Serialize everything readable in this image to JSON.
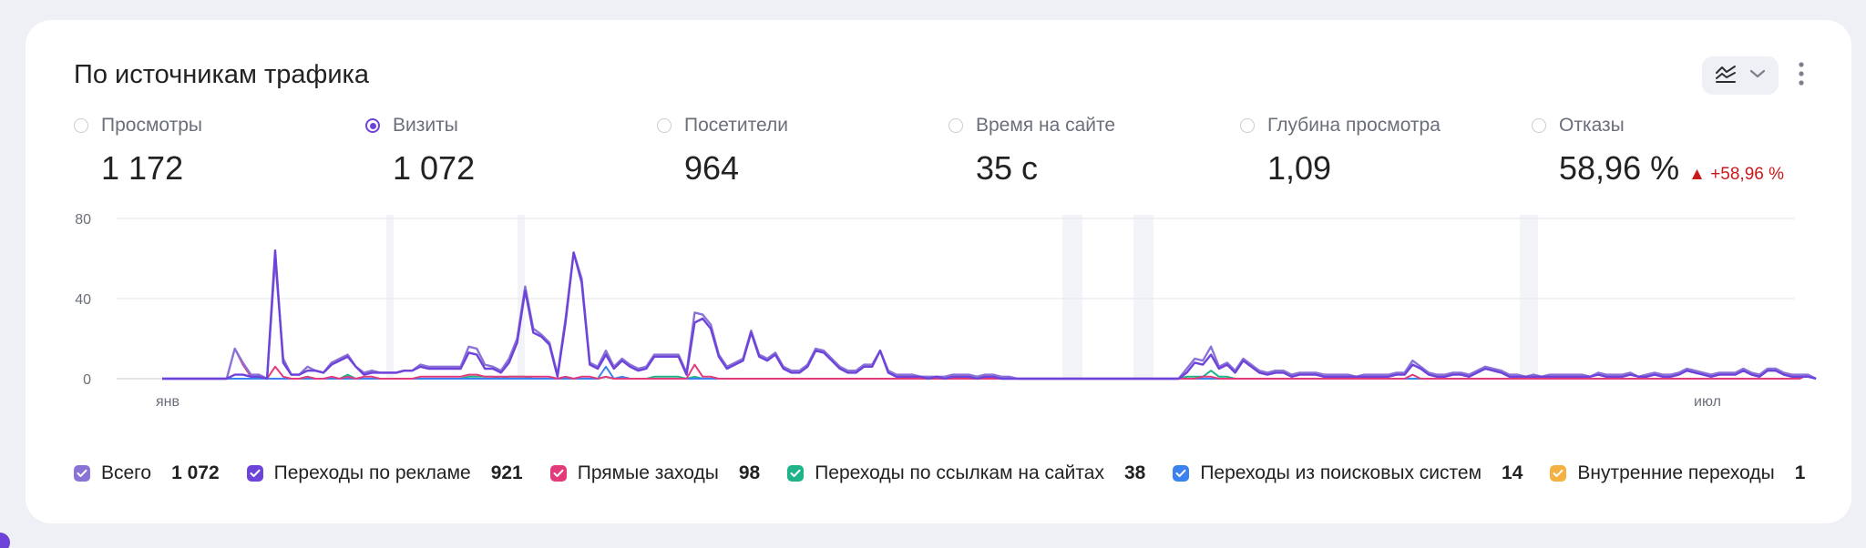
{
  "title": "По источникам трафика",
  "metrics": [
    {
      "label": "Просмотры",
      "value": "1 172",
      "selected": false
    },
    {
      "label": "Визиты",
      "value": "1 072",
      "selected": true
    },
    {
      "label": "Посетители",
      "value": "964",
      "selected": false
    },
    {
      "label": "Время на сайте",
      "value": "35 с",
      "selected": false
    },
    {
      "label": "Глубина просмотра",
      "value": "1,09",
      "selected": false
    },
    {
      "label": "Отказы",
      "value": "58,96 %",
      "delta": "▲ +58,96 %",
      "selected": false
    }
  ],
  "icons": {
    "chart_type": "line-chart-icon",
    "dropdown": "chevron-down-icon",
    "more": "more-vertical-icon"
  },
  "chart_data": {
    "type": "line",
    "x_tick_labels": [
      "янв",
      "июл"
    ],
    "y_ticks": [
      0,
      40,
      80
    ],
    "ylim": [
      0,
      80
    ],
    "n_points": 200,
    "series": [
      {
        "name": "Всего",
        "color": "#8a73d6",
        "values": [
          0,
          0,
          0,
          0,
          0,
          0,
          0,
          0,
          0,
          15,
          8,
          2,
          2,
          0,
          60,
          10,
          2,
          2,
          6,
          4,
          3,
          8,
          10,
          12,
          6,
          3,
          4,
          3,
          3,
          3,
          4,
          4,
          7,
          6,
          6,
          6,
          6,
          6,
          16,
          15,
          7,
          6,
          4,
          10,
          20,
          46,
          25,
          22,
          18,
          2,
          30,
          63,
          50,
          8,
          6,
          14,
          6,
          10,
          7,
          5,
          6,
          12,
          12,
          12,
          12,
          3,
          33,
          32,
          27,
          12,
          6,
          8,
          10,
          24,
          12,
          10,
          13,
          6,
          4,
          4,
          7,
          15,
          14,
          10,
          6,
          4,
          4,
          7,
          7,
          14,
          4,
          2,
          2,
          2,
          1,
          1,
          1,
          1,
          2,
          2,
          2,
          1,
          2,
          2,
          1,
          1,
          0,
          0,
          0,
          0,
          0,
          0,
          0,
          0,
          0,
          0,
          0,
          0,
          0,
          0,
          0,
          0,
          0,
          0,
          0,
          0,
          0,
          5,
          10,
          9,
          16,
          6,
          8,
          4,
          10,
          7,
          4,
          3,
          4,
          4,
          2,
          3,
          3,
          3,
          2,
          2,
          2,
          2,
          1,
          2,
          2,
          2,
          2,
          3,
          3,
          9,
          6,
          3,
          2,
          2,
          3,
          3,
          2,
          4,
          6,
          5,
          4,
          2,
          2,
          1,
          2,
          1,
          2,
          2,
          2,
          2,
          2,
          1,
          3,
          2,
          2,
          2,
          3,
          1,
          2,
          3,
          2,
          2,
          3,
          5,
          4,
          3,
          2,
          3,
          3,
          3,
          5,
          3,
          2,
          5,
          5,
          3,
          2,
          2,
          2,
          0
        ]
      },
      {
        "name": "Переходы по рекламе",
        "color": "#6e43d9",
        "values": [
          0,
          0,
          0,
          0,
          0,
          0,
          0,
          0,
          0,
          2,
          2,
          1,
          1,
          0,
          64,
          8,
          2,
          2,
          4,
          4,
          3,
          7,
          9,
          11,
          6,
          2,
          3,
          3,
          3,
          3,
          4,
          4,
          6,
          5,
          5,
          5,
          5,
          5,
          13,
          12,
          5,
          5,
          3,
          8,
          18,
          44,
          23,
          21,
          17,
          1,
          28,
          63,
          48,
          7,
          5,
          12,
          5,
          9,
          6,
          4,
          5,
          11,
          11,
          11,
          11,
          2,
          28,
          30,
          25,
          11,
          5,
          7,
          9,
          23,
          11,
          9,
          12,
          5,
          3,
          3,
          6,
          14,
          13,
          9,
          5,
          3,
          3,
          6,
          6,
          14,
          3,
          1,
          1,
          1,
          1,
          0,
          1,
          0,
          1,
          1,
          1,
          0,
          1,
          1,
          0,
          0,
          0,
          0,
          0,
          0,
          0,
          0,
          0,
          0,
          0,
          0,
          0,
          0,
          0,
          0,
          0,
          0,
          0,
          0,
          0,
          0,
          0,
          3,
          8,
          7,
          12,
          5,
          7,
          3,
          9,
          6,
          3,
          2,
          3,
          3,
          1,
          2,
          2,
          2,
          1,
          1,
          1,
          1,
          1,
          1,
          1,
          1,
          1,
          2,
          2,
          7,
          5,
          2,
          1,
          1,
          2,
          2,
          1,
          3,
          5,
          4,
          3,
          1,
          1,
          1,
          1,
          1,
          1,
          1,
          1,
          1,
          1,
          1,
          2,
          1,
          1,
          1,
          2,
          1,
          1,
          2,
          1,
          1,
          2,
          4,
          3,
          2,
          1,
          2,
          2,
          2,
          4,
          2,
          1,
          4,
          4,
          2,
          1,
          1,
          1,
          0
        ]
      },
      {
        "name": "Прямые заходы",
        "color": "#e23a7a",
        "values": [
          0,
          0,
          0,
          0,
          0,
          0,
          0,
          0,
          0,
          15,
          7,
          1,
          1,
          0,
          6,
          1,
          0,
          0,
          1,
          0,
          0,
          1,
          0,
          1,
          0,
          1,
          1,
          0,
          0,
          0,
          0,
          0,
          1,
          1,
          1,
          1,
          1,
          1,
          2,
          2,
          1,
          1,
          1,
          1,
          1,
          1,
          1,
          1,
          1,
          0,
          1,
          0,
          1,
          1,
          0,
          1,
          0,
          0,
          0,
          0,
          0,
          0,
          0,
          0,
          0,
          0,
          7,
          1,
          1,
          0,
          0,
          0,
          0,
          0,
          0,
          0,
          0,
          0,
          0,
          0,
          0,
          0,
          0,
          0,
          0,
          0,
          0,
          0,
          0,
          0,
          0,
          0,
          0,
          0,
          0,
          0,
          0,
          0,
          0,
          0,
          0,
          0,
          0,
          0,
          0,
          0,
          0,
          0,
          0,
          0,
          0,
          0,
          0,
          0,
          0,
          0,
          0,
          0,
          0,
          0,
          0,
          0,
          0,
          0,
          0,
          0,
          0,
          0,
          0,
          1,
          1,
          0,
          0,
          0,
          0,
          0,
          0,
          0,
          0,
          0,
          0,
          0,
          0,
          0,
          0,
          0,
          0,
          0,
          0,
          0,
          0,
          0,
          0,
          0,
          0,
          2,
          0,
          0,
          0,
          0,
          0,
          0,
          0,
          0,
          0,
          0,
          0,
          0,
          0,
          0,
          0,
          0,
          0,
          0,
          0,
          0,
          0,
          0,
          0,
          0,
          0,
          0,
          0,
          0,
          0,
          0,
          0,
          0,
          0,
          0,
          0,
          0,
          0,
          0,
          0,
          0,
          0,
          0,
          0,
          0,
          0,
          0,
          0,
          0,
          2,
          0
        ]
      },
      {
        "name": "Переходы по ссылкам на сайтах",
        "color": "#1fb38a",
        "values": [
          0,
          0,
          0,
          0,
          0,
          0,
          0,
          0,
          0,
          0,
          0,
          0,
          0,
          0,
          0,
          0,
          0,
          0,
          1,
          0,
          0,
          0,
          0,
          2,
          0,
          0,
          0,
          0,
          0,
          0,
          0,
          0,
          0,
          0,
          0,
          0,
          0,
          0,
          1,
          1,
          1,
          1,
          0,
          1,
          1,
          1,
          0,
          0,
          0,
          0,
          1,
          0,
          0,
          0,
          0,
          1,
          0,
          0,
          0,
          0,
          0,
          1,
          1,
          1,
          1,
          0,
          1,
          0,
          0,
          0,
          0,
          0,
          0,
          0,
          0,
          0,
          0,
          0,
          0,
          0,
          0,
          0,
          0,
          0,
          0,
          0,
          0,
          0,
          0,
          0,
          0,
          0,
          0,
          0,
          0,
          0,
          0,
          0,
          0,
          0,
          0,
          0,
          0,
          0,
          0,
          0,
          0,
          0,
          0,
          0,
          0,
          0,
          0,
          0,
          0,
          0,
          0,
          0,
          0,
          0,
          0,
          0,
          0,
          0,
          0,
          0,
          0,
          1,
          1,
          1,
          4,
          1,
          1,
          0,
          0,
          0,
          0,
          0,
          0,
          0,
          0,
          0,
          0,
          0,
          0,
          0,
          0,
          0,
          0,
          0,
          0,
          0,
          0,
          0,
          0,
          0,
          0,
          0,
          0,
          0,
          0,
          0,
          0,
          0,
          0,
          0,
          0,
          0,
          0,
          0,
          0,
          0,
          0,
          0,
          0,
          0,
          0,
          0,
          0,
          0,
          0,
          0,
          0,
          0,
          0,
          0,
          0,
          0,
          0,
          0,
          0,
          0,
          0,
          0,
          0,
          0,
          0,
          0,
          0,
          0,
          0,
          0
        ]
      },
      {
        "name": "Переходы из поисковых систем",
        "color": "#3b82f0",
        "values": [
          0,
          0,
          0,
          0,
          0,
          0,
          0,
          0,
          0,
          0,
          0,
          0,
          0,
          0,
          0,
          0,
          0,
          0,
          0,
          0,
          0,
          0,
          0,
          0,
          0,
          0,
          0,
          0,
          0,
          0,
          0,
          0,
          0,
          0,
          0,
          0,
          0,
          0,
          0,
          0,
          0,
          0,
          0,
          0,
          0,
          0,
          0,
          0,
          0,
          0,
          0,
          0,
          0,
          0,
          0,
          6,
          0,
          1,
          0,
          0,
          0,
          0,
          0,
          0,
          0,
          0,
          0,
          0,
          0,
          0,
          0,
          0,
          0,
          0,
          0,
          0,
          0,
          0,
          0,
          0,
          0,
          0,
          0,
          0,
          0,
          0,
          0,
          0,
          0,
          0,
          0,
          0,
          0,
          0,
          0,
          0,
          0,
          0,
          0,
          0,
          0,
          0,
          0,
          0,
          0,
          0,
          0,
          0,
          0,
          0,
          0,
          0,
          0,
          0,
          0,
          0,
          0,
          0,
          0,
          0,
          0,
          0,
          0,
          0,
          0,
          0,
          0,
          0,
          0,
          0,
          0,
          0,
          0,
          0,
          0,
          0,
          0,
          0,
          0,
          0,
          0,
          0,
          0,
          0,
          0,
          0,
          0,
          0,
          0,
          0,
          0,
          0,
          0,
          0,
          0,
          0,
          0,
          0,
          0,
          0,
          0,
          0,
          0,
          0,
          0,
          0,
          0,
          0,
          0,
          0,
          0,
          0,
          0,
          0,
          0,
          0,
          0,
          0,
          0,
          0,
          0,
          0,
          0,
          0,
          0,
          0,
          0,
          0,
          0,
          0,
          0,
          0,
          0,
          0,
          0,
          0,
          0,
          0,
          0,
          0
        ]
      },
      {
        "name": "Внутренние переходы",
        "color": "#f4b040",
        "values": []
      }
    ]
  },
  "legend": [
    {
      "label": "Всего",
      "count": "1 072",
      "color": "#8a73d6"
    },
    {
      "label": "Переходы по рекламе",
      "count": "921",
      "color": "#6e43d9"
    },
    {
      "label": "Прямые заходы",
      "count": "98",
      "color": "#e23a7a"
    },
    {
      "label": "Переходы по ссылкам на сайтах",
      "count": "38",
      "color": "#1fb38a"
    },
    {
      "label": "Переходы из поисковых систем",
      "count": "14",
      "color": "#3b82f0"
    },
    {
      "label": "Внутренние переходы",
      "count": "1",
      "color": "#f4b040"
    }
  ]
}
